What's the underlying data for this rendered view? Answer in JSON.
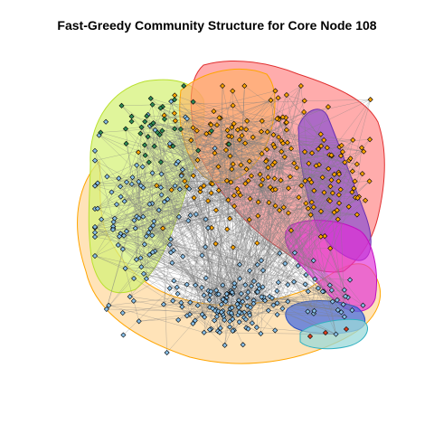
{
  "title": "Fast-Greedy Community Structure for Core Node 108",
  "colors": {
    "edge": "#808080",
    "community_orange": "#ffa500",
    "community_blue": "#87bfe8",
    "community_teal": "#2e8b57",
    "community_red_region": "#ff8080",
    "community_yellowgreen_region": "#d6f27a",
    "community_peach_region": "#ffd79a",
    "community_purple_region": "#8a4fd1",
    "community_magenta_region": "#e02ad8",
    "community_royalblue_region": "#4a6fe0",
    "community_cyan_region": "#9ad9d9",
    "node_stroke": "#000000"
  },
  "communities": [
    "orange",
    "blue",
    "teal",
    "red",
    "purple",
    "magenta",
    "royalblue",
    "cyan"
  ]
}
